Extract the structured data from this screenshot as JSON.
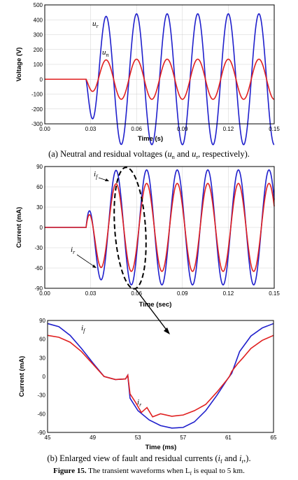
{
  "chart_data": [
    {
      "id": "voltage",
      "type": "line",
      "xlabel": "Time (s)",
      "ylabel": "Voltage (V)",
      "xlim": [
        0,
        0.15
      ],
      "ylim": [
        -300,
        500
      ],
      "xticks": [
        "0.00",
        "0.03",
        "0.06",
        "0.09",
        "0.12",
        "0.15"
      ],
      "yticks": [
        "-300",
        "-200",
        "-100",
        "0",
        "100",
        "200",
        "300",
        "400",
        "500"
      ],
      "grid": true,
      "series": [
        {
          "key": "ur",
          "annotation": "u",
          "annotation_sub": "r",
          "color": "#1f1fcc",
          "fault_time": 0.027,
          "amplitude": 440,
          "freq": 50,
          "phase": 1.57,
          "pre_value": 0
        },
        {
          "key": "un",
          "annotation": "u",
          "annotation_sub": "n",
          "color": "#e02020",
          "fault_time": 0.027,
          "amplitude": 135,
          "freq": 50,
          "phase": 1.57,
          "pre_value": 0
        }
      ]
    },
    {
      "id": "current",
      "type": "line",
      "xlabel": "Time (sec)",
      "ylabel": "Current (mA)",
      "xlim": [
        0,
        0.15
      ],
      "ylim": [
        -90,
        90
      ],
      "xticks": [
        "0.00",
        "0.03",
        "0.06",
        "0.09",
        "0.12",
        "0.15"
      ],
      "yticks": [
        "-90",
        "-60",
        "-30",
        "0",
        "30",
        "60",
        "90"
      ],
      "grid": true,
      "series": [
        {
          "key": "if",
          "annotation": "i",
          "annotation_sub": "f",
          "color": "#1f1fcc",
          "fault_time": 0.027,
          "amplitude": 85,
          "freq": 50,
          "phase": -0.5,
          "pre_value": 0
        },
        {
          "key": "ir",
          "annotation": "i",
          "annotation_sub": "r",
          "color": "#e02020",
          "fault_time": 0.027,
          "amplitude": 65,
          "freq": 50,
          "phase": -0.5,
          "pre_value": 0
        }
      ]
    },
    {
      "id": "enlarged",
      "type": "line",
      "xlabel": "Time (ms)",
      "ylabel": "Current (mA)",
      "xlim": [
        45,
        65
      ],
      "ylim": [
        -90,
        90
      ],
      "xticks": [
        "45",
        "49",
        "53",
        "57",
        "61",
        "65"
      ],
      "yticks": [
        "-90",
        "-60",
        "-30",
        "0",
        "30",
        "60",
        "90"
      ],
      "grid": false,
      "series": [
        {
          "key": "if",
          "annotation": "i",
          "annotation_sub": "f",
          "color": "#1f1fcc",
          "x": [
            45,
            46,
            47,
            48,
            49,
            50,
            51,
            51.9,
            52.1,
            52.3,
            53,
            54,
            55,
            56,
            57,
            58,
            59,
            60,
            60.9,
            61.1,
            61.3,
            62,
            63,
            64,
            65
          ],
          "y": [
            85,
            80,
            66,
            45,
            22,
            0,
            -5,
            -4,
            2,
            -35,
            -55,
            -70,
            -79,
            -83,
            -82,
            -73,
            -55,
            -30,
            -5,
            0,
            5,
            40,
            65,
            78,
            85
          ]
        },
        {
          "key": "ir",
          "annotation": "i",
          "annotation_sub": "r",
          "color": "#e02020",
          "x": [
            45,
            46,
            47,
            48,
            49,
            50,
            51,
            51.9,
            52.1,
            52.3,
            52.8,
            53.3,
            53.8,
            54.3,
            55,
            56,
            57,
            58,
            59,
            60,
            60.9,
            61.1,
            61.3,
            61.8,
            62.3,
            63,
            64,
            65
          ],
          "y": [
            66,
            63,
            55,
            40,
            20,
            0,
            -5,
            -4,
            2,
            -28,
            -42,
            -58,
            -50,
            -65,
            -60,
            -64,
            -62,
            -55,
            -45,
            -25,
            -5,
            0,
            8,
            20,
            30,
            45,
            58,
            66
          ]
        }
      ]
    }
  ],
  "captions": {
    "a": "(a) Neutral and residual voltages (un and ur, respectively).",
    "b": "(b) Enlarged view of fault and residual currents (if and ir,).",
    "figure_label": "Figure 15.",
    "figure_text": "The transient waveforms when Lf is equal to 5 km."
  }
}
